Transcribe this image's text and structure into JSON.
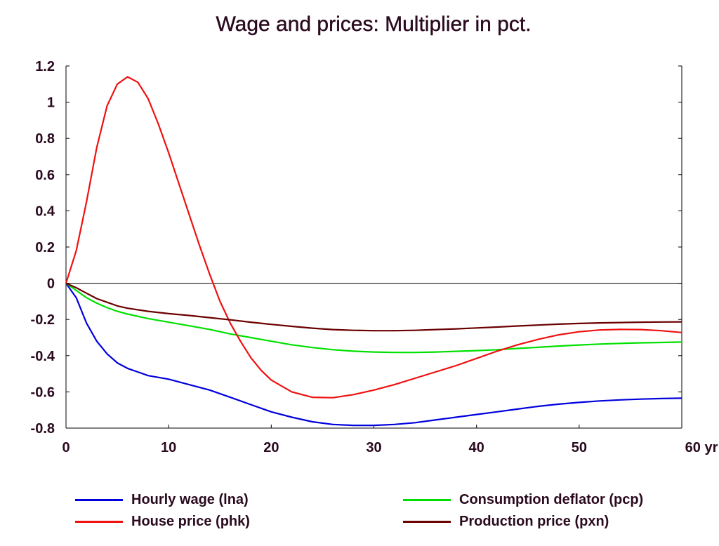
{
  "chart_data": {
    "type": "line",
    "title": "Wage and prices: Multiplier in pct.",
    "x_unit_label": "yr",
    "xlim": [
      0,
      60
    ],
    "ylim": [
      -0.8,
      1.2
    ],
    "x_ticks": [
      0,
      10,
      20,
      30,
      40,
      50,
      60
    ],
    "x_tick_labels": [
      "0",
      "10",
      "20",
      "30",
      "40",
      "50",
      "60 yr"
    ],
    "y_ticks": [
      1.2,
      1,
      0.8,
      0.6,
      0.4,
      0.2,
      0,
      -0.2,
      -0.4,
      -0.6,
      -0.8
    ],
    "y_tick_labels": [
      "1.2",
      "1",
      "0.8",
      "0.6",
      "0.4",
      "0.2",
      "0",
      "-0.2",
      "-0.4",
      "-0.6",
      "-0.8"
    ],
    "zero_line": true,
    "grid": false,
    "legend_position": "bottom",
    "series": [
      {
        "name": "Hourly wage (lna)",
        "color": "#0000dd",
        "points": [
          [
            0,
            0
          ],
          [
            1,
            -0.08
          ],
          [
            2,
            -0.22
          ],
          [
            3,
            -0.32
          ],
          [
            4,
            -0.39
          ],
          [
            5,
            -0.44
          ],
          [
            6,
            -0.47
          ],
          [
            7,
            -0.49
          ],
          [
            8,
            -0.51
          ],
          [
            10,
            -0.53
          ],
          [
            12,
            -0.56
          ],
          [
            14,
            -0.59
          ],
          [
            16,
            -0.63
          ],
          [
            18,
            -0.67
          ],
          [
            20,
            -0.71
          ],
          [
            22,
            -0.74
          ],
          [
            24,
            -0.765
          ],
          [
            26,
            -0.78
          ],
          [
            28,
            -0.785
          ],
          [
            30,
            -0.785
          ],
          [
            32,
            -0.78
          ],
          [
            34,
            -0.77
          ],
          [
            36,
            -0.755
          ],
          [
            38,
            -0.74
          ],
          [
            40,
            -0.725
          ],
          [
            42,
            -0.71
          ],
          [
            44,
            -0.695
          ],
          [
            46,
            -0.68
          ],
          [
            48,
            -0.668
          ],
          [
            50,
            -0.658
          ],
          [
            52,
            -0.65
          ],
          [
            54,
            -0.644
          ],
          [
            56,
            -0.64
          ],
          [
            58,
            -0.637
          ],
          [
            60,
            -0.635
          ]
        ]
      },
      {
        "name": "Consumption deflator (pcp)",
        "color": "#00e000",
        "points": [
          [
            0,
            0
          ],
          [
            1,
            -0.04
          ],
          [
            2,
            -0.08
          ],
          [
            3,
            -0.11
          ],
          [
            4,
            -0.135
          ],
          [
            5,
            -0.155
          ],
          [
            6,
            -0.17
          ],
          [
            8,
            -0.195
          ],
          [
            10,
            -0.215
          ],
          [
            12,
            -0.235
          ],
          [
            14,
            -0.255
          ],
          [
            16,
            -0.28
          ],
          [
            18,
            -0.3
          ],
          [
            20,
            -0.32
          ],
          [
            22,
            -0.34
          ],
          [
            24,
            -0.355
          ],
          [
            26,
            -0.367
          ],
          [
            28,
            -0.375
          ],
          [
            30,
            -0.38
          ],
          [
            32,
            -0.382
          ],
          [
            34,
            -0.382
          ],
          [
            36,
            -0.38
          ],
          [
            38,
            -0.376
          ],
          [
            40,
            -0.372
          ],
          [
            42,
            -0.367
          ],
          [
            44,
            -0.36
          ],
          [
            46,
            -0.354
          ],
          [
            48,
            -0.347
          ],
          [
            50,
            -0.341
          ],
          [
            52,
            -0.336
          ],
          [
            54,
            -0.332
          ],
          [
            56,
            -0.329
          ],
          [
            58,
            -0.327
          ],
          [
            60,
            -0.325
          ]
        ]
      },
      {
        "name": "House price (phk)",
        "color": "#ee1111",
        "points": [
          [
            0,
            0
          ],
          [
            1,
            0.18
          ],
          [
            2,
            0.45
          ],
          [
            3,
            0.75
          ],
          [
            4,
            0.98
          ],
          [
            5,
            1.1
          ],
          [
            6,
            1.14
          ],
          [
            7,
            1.11
          ],
          [
            8,
            1.02
          ],
          [
            9,
            0.88
          ],
          [
            10,
            0.72
          ],
          [
            11,
            0.55
          ],
          [
            12,
            0.38
          ],
          [
            13,
            0.21
          ],
          [
            14,
            0.05
          ],
          [
            15,
            -0.1
          ],
          [
            16,
            -0.22
          ],
          [
            17,
            -0.32
          ],
          [
            18,
            -0.41
          ],
          [
            19,
            -0.48
          ],
          [
            20,
            -0.535
          ],
          [
            22,
            -0.6
          ],
          [
            24,
            -0.63
          ],
          [
            26,
            -0.632
          ],
          [
            28,
            -0.615
          ],
          [
            30,
            -0.59
          ],
          [
            32,
            -0.56
          ],
          [
            34,
            -0.525
          ],
          [
            36,
            -0.49
          ],
          [
            38,
            -0.455
          ],
          [
            40,
            -0.415
          ],
          [
            42,
            -0.375
          ],
          [
            44,
            -0.34
          ],
          [
            46,
            -0.31
          ],
          [
            48,
            -0.285
          ],
          [
            50,
            -0.268
          ],
          [
            52,
            -0.258
          ],
          [
            54,
            -0.255
          ],
          [
            56,
            -0.256
          ],
          [
            58,
            -0.262
          ],
          [
            60,
            -0.272
          ]
        ]
      },
      {
        "name": "Production price (pxn)",
        "color": "#6b0000",
        "points": [
          [
            0,
            0
          ],
          [
            1,
            -0.025
          ],
          [
            2,
            -0.055
          ],
          [
            3,
            -0.085
          ],
          [
            4,
            -0.105
          ],
          [
            5,
            -0.125
          ],
          [
            6,
            -0.138
          ],
          [
            8,
            -0.155
          ],
          [
            10,
            -0.168
          ],
          [
            12,
            -0.178
          ],
          [
            14,
            -0.19
          ],
          [
            16,
            -0.202
          ],
          [
            18,
            -0.215
          ],
          [
            20,
            -0.227
          ],
          [
            22,
            -0.238
          ],
          [
            24,
            -0.248
          ],
          [
            26,
            -0.256
          ],
          [
            28,
            -0.26
          ],
          [
            30,
            -0.262
          ],
          [
            32,
            -0.262
          ],
          [
            34,
            -0.26
          ],
          [
            36,
            -0.256
          ],
          [
            38,
            -0.252
          ],
          [
            40,
            -0.247
          ],
          [
            42,
            -0.242
          ],
          [
            44,
            -0.236
          ],
          [
            46,
            -0.231
          ],
          [
            48,
            -0.226
          ],
          [
            50,
            -0.222
          ],
          [
            52,
            -0.219
          ],
          [
            54,
            -0.217
          ],
          [
            56,
            -0.215
          ],
          [
            58,
            -0.214
          ],
          [
            60,
            -0.213
          ]
        ]
      }
    ]
  },
  "legend": {
    "items": [
      {
        "label": "Hourly wage (lna)",
        "color": "#0000dd"
      },
      {
        "label": "House price (phk)",
        "color": "#ee1111"
      },
      {
        "label": "Consumption deflator (pcp)",
        "color": "#00e000"
      },
      {
        "label": "Production price (pxn)",
        "color": "#6b0000"
      }
    ]
  }
}
